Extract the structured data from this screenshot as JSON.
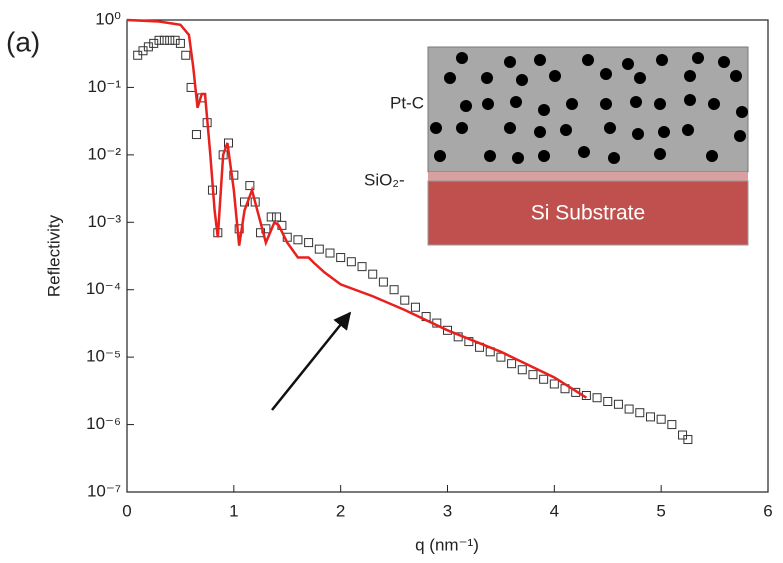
{
  "chart_data": {
    "type": "scatter-line",
    "panel_label": "(a)",
    "xlabel": "q (nm⁻¹)",
    "ylabel": "Reflectivity",
    "xlim": [
      0,
      6
    ],
    "xticks": [
      0,
      1,
      2,
      3,
      4,
      5,
      6
    ],
    "ylim": [
      1e-07,
      1
    ],
    "yscale": "log",
    "yticks": [
      {
        "value": 1e-07,
        "label": "10⁻⁷"
      },
      {
        "value": 1e-06,
        "label": "10⁻⁶"
      },
      {
        "value": 1e-05,
        "label": "10⁻⁵"
      },
      {
        "value": 0.0001,
        "label": "10⁻⁴"
      },
      {
        "value": 0.001,
        "label": "10⁻³"
      },
      {
        "value": 0.01,
        "label": "10⁻²"
      },
      {
        "value": 0.1,
        "label": "10⁻¹"
      },
      {
        "value": 1,
        "label": "10⁰"
      }
    ],
    "series": [
      {
        "marker": "square",
        "color": "#333333",
        "x": [
          0.1,
          0.15,
          0.2,
          0.25,
          0.3,
          0.35,
          0.4,
          0.45,
          0.5,
          0.55,
          0.6,
          0.65,
          0.7,
          0.75,
          0.8,
          0.85,
          0.9,
          0.95,
          1.0,
          1.05,
          1.1,
          1.15,
          1.2,
          1.25,
          1.3,
          1.35,
          1.4,
          1.45,
          1.5,
          1.6,
          1.7,
          1.8,
          1.9,
          2.0,
          2.1,
          2.2,
          2.3,
          2.4,
          2.5,
          2.6,
          2.7,
          2.8,
          2.9,
          3.0,
          3.1,
          3.2,
          3.3,
          3.4,
          3.5,
          3.6,
          3.7,
          3.8,
          3.9,
          4.0,
          4.1,
          4.2,
          4.3,
          4.4,
          4.5,
          4.6,
          4.7,
          4.8,
          4.9,
          5.0,
          5.1,
          5.2,
          5.25
        ],
        "values": [
          0.3,
          0.35,
          0.4,
          0.45,
          0.5,
          0.5,
          0.5,
          0.5,
          0.45,
          0.3,
          0.1,
          0.02,
          0.07,
          0.03,
          0.003,
          0.0007,
          0.01,
          0.015,
          0.005,
          0.0008,
          0.002,
          0.0035,
          0.002,
          0.0007,
          0.0008,
          0.0012,
          0.0012,
          0.0009,
          0.0006,
          0.00055,
          0.0005,
          0.0004,
          0.00035,
          0.0003,
          0.00026,
          0.00022,
          0.00017,
          0.00013,
          0.0001,
          7e-05,
          5.5e-05,
          4e-05,
          3.2e-05,
          2.5e-05,
          2e-05,
          1.7e-05,
          1.4e-05,
          1.2e-05,
          1e-05,
          8e-06,
          6.5e-06,
          5.5e-06,
          4.7e-06,
          4e-06,
          3.4e-06,
          3e-06,
          2.7e-06,
          2.5e-06,
          2.2e-06,
          2e-06,
          1.7e-06,
          1.5e-06,
          1.3e-06,
          1.2e-06,
          1e-06,
          7e-07,
          6e-07
        ]
      },
      {
        "marker": "line",
        "color": "#e8201e",
        "x": [
          0,
          0.3,
          0.5,
          0.58,
          0.62,
          0.66,
          0.7,
          0.73,
          0.78,
          0.82,
          0.85,
          0.9,
          0.94,
          1.0,
          1.05,
          1.1,
          1.17,
          1.22,
          1.3,
          1.38,
          1.42,
          1.5,
          1.6,
          1.7,
          1.75,
          1.85,
          2.0,
          2.3,
          2.6,
          3.0,
          3.5,
          4.0,
          4.3
        ],
        "values": [
          1,
          0.95,
          0.85,
          0.6,
          0.2,
          0.05,
          0.08,
          0.08,
          0.01,
          0.0015,
          0.0006,
          0.01,
          0.015,
          0.003,
          0.00045,
          0.0015,
          0.003,
          0.0015,
          0.0005,
          0.001,
          0.0009,
          0.0005,
          0.0003,
          0.0003,
          0.00025,
          0.00018,
          0.00012,
          8e-05,
          5e-05,
          2.5e-05,
          1.2e-05,
          5e-06,
          2.5e-06
        ]
      }
    ],
    "inset": {
      "layer_top": "Pt-C",
      "layer_middle": "SiO₂-",
      "layer_bottom": "Si Substrate"
    }
  }
}
